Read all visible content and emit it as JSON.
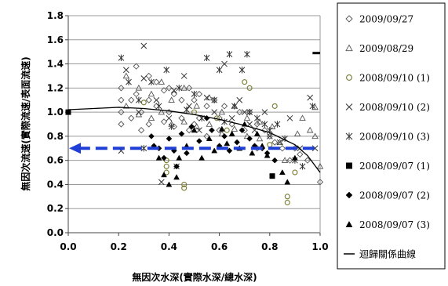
{
  "chart_data": {
    "type": "scatter",
    "xlabel": "無因次水深(實際水深/總水深)",
    "ylabel": "無因次流速(實際流速/表面流速)",
    "xlim": [
      0.0,
      1.0
    ],
    "ylim": [
      0.0,
      1.8
    ],
    "xticks": [
      "0.0",
      "0.2",
      "0.4",
      "0.6",
      "0.8",
      "1.0"
    ],
    "yticks": [
      "0.0",
      "0.2",
      "0.4",
      "0.6",
      "0.8",
      "1.0",
      "1.2",
      "1.4",
      "1.6",
      "1.8"
    ],
    "grid": "horizontal",
    "legend_position": "right",
    "series": [
      {
        "name": "2009/09/27",
        "marker": "diamond-open",
        "color": "#555555",
        "points": [
          [
            0.21,
            1.2
          ],
          [
            0.21,
            1.1
          ],
          [
            0.21,
            1.0
          ],
          [
            0.21,
            0.9
          ],
          [
            0.25,
            1.1
          ],
          [
            0.25,
            0.95
          ],
          [
            0.27,
            1.38
          ],
          [
            0.27,
            1.15
          ],
          [
            0.29,
            1.0
          ],
          [
            0.29,
            0.85
          ],
          [
            0.32,
            1.3
          ],
          [
            0.32,
            1.1
          ],
          [
            0.32,
            0.9
          ],
          [
            0.35,
            1.25
          ],
          [
            0.35,
            1.05
          ],
          [
            0.38,
            1.18
          ],
          [
            0.38,
            0.92
          ],
          [
            0.4,
            1.2
          ],
          [
            0.4,
            1.0
          ],
          [
            0.42,
            1.15
          ],
          [
            0.42,
            0.88
          ],
          [
            0.45,
            1.1
          ],
          [
            0.45,
            0.95
          ],
          [
            0.48,
            1.2
          ],
          [
            0.48,
            0.85
          ],
          [
            0.5,
            1.1
          ],
          [
            0.5,
            0.9
          ],
          [
            0.52,
            1.15
          ],
          [
            0.52,
            0.95
          ],
          [
            0.55,
            1.05
          ],
          [
            0.55,
            0.8
          ],
          [
            0.58,
            1.1
          ],
          [
            0.6,
            0.95
          ],
          [
            0.6,
            0.85
          ],
          [
            0.62,
            1.05
          ],
          [
            0.65,
            0.9
          ],
          [
            0.68,
            1.0
          ],
          [
            0.7,
            0.85
          ],
          [
            0.72,
            1.0
          ],
          [
            0.75,
            0.9
          ],
          [
            0.75,
            0.7
          ],
          [
            0.78,
            0.85
          ],
          [
            0.8,
            0.8
          ],
          [
            0.82,
            0.75
          ],
          [
            0.85,
            0.7
          ],
          [
            0.88,
            0.6
          ],
          [
            0.9,
            0.7
          ],
          [
            0.92,
            0.65
          ],
          [
            0.95,
            0.6
          ],
          [
            1.0,
            0.42
          ]
        ]
      },
      {
        "name": "2009/08/29",
        "marker": "triangle-open",
        "color": "#555555",
        "points": [
          [
            0.23,
            1.3
          ],
          [
            0.23,
            1.05
          ],
          [
            0.28,
            1.2
          ],
          [
            0.28,
            0.98
          ],
          [
            0.33,
            1.15
          ],
          [
            0.33,
            0.95
          ],
          [
            0.37,
            1.25
          ],
          [
            0.37,
            1.0
          ],
          [
            0.41,
            1.1
          ],
          [
            0.41,
            0.9
          ],
          [
            0.46,
            1.2
          ],
          [
            0.46,
            0.92
          ],
          [
            0.51,
            1.05
          ],
          [
            0.51,
            0.88
          ],
          [
            0.56,
            1.12
          ],
          [
            0.56,
            0.9
          ],
          [
            0.61,
            1.0
          ],
          [
            0.61,
            0.82
          ],
          [
            0.66,
            1.05
          ],
          [
            0.66,
            0.86
          ],
          [
            0.71,
            0.95
          ],
          [
            0.71,
            0.8
          ],
          [
            0.76,
            0.92
          ],
          [
            0.76,
            0.78
          ],
          [
            0.81,
            0.88
          ],
          [
            0.84,
            0.75
          ],
          [
            0.86,
            0.6
          ],
          [
            0.91,
            0.82
          ],
          [
            0.93,
            0.95
          ],
          [
            0.96,
            0.85
          ],
          [
            0.98,
            0.8
          ],
          [
            0.98,
            1.04
          ],
          [
            1.0,
            0.55
          ]
        ]
      },
      {
        "name": "2008/09/10 (1)",
        "marker": "circle-open",
        "color": "#7a7a30",
        "points": [
          [
            0.3,
            1.08
          ],
          [
            0.39,
            0.6
          ],
          [
            0.39,
            0.55
          ],
          [
            0.39,
            0.5
          ],
          [
            0.46,
            0.4
          ],
          [
            0.46,
            0.37
          ],
          [
            0.5,
            1.0
          ],
          [
            0.59,
            0.95
          ],
          [
            0.63,
            0.85
          ],
          [
            0.7,
            1.25
          ],
          [
            0.72,
            1.2
          ],
          [
            0.8,
            0.73
          ],
          [
            0.82,
            1.05
          ],
          [
            0.87,
            0.3
          ],
          [
            0.87,
            0.25
          ],
          [
            0.9,
            0.5
          ]
        ]
      },
      {
        "name": "2008/09/10 (2)",
        "marker": "x",
        "color": "#333333",
        "points": [
          [
            0.21,
            0.68
          ],
          [
            0.23,
            1.35
          ],
          [
            0.28,
            1.0
          ],
          [
            0.3,
            1.55
          ],
          [
            0.3,
            1.28
          ],
          [
            0.35,
            1.1
          ],
          [
            0.37,
            0.42
          ],
          [
            0.4,
            0.95
          ],
          [
            0.42,
            1.18
          ],
          [
            0.43,
            0.55
          ],
          [
            0.46,
            1.3
          ],
          [
            0.48,
            1.05
          ],
          [
            0.52,
            0.85
          ],
          [
            0.55,
            1.12
          ],
          [
            0.58,
            1.0
          ],
          [
            0.62,
            1.4
          ],
          [
            0.65,
            0.95
          ],
          [
            0.68,
            1.1
          ],
          [
            0.7,
            1.0
          ],
          [
            0.72,
            0.9
          ],
          [
            0.74,
            0.85
          ],
          [
            0.78,
            1.0
          ],
          [
            0.8,
            0.8
          ],
          [
            0.84,
            0.75
          ],
          [
            0.88,
            0.95
          ],
          [
            0.92,
            0.7
          ],
          [
            0.96,
            1.12
          ],
          [
            0.98,
            0.7
          ]
        ]
      },
      {
        "name": "2008/09/10 (3)",
        "marker": "star",
        "color": "#333333",
        "points": [
          [
            0.21,
            1.45
          ],
          [
            0.24,
            1.25
          ],
          [
            0.28,
            1.1
          ],
          [
            0.3,
            0.7
          ],
          [
            0.33,
            1.25
          ],
          [
            0.36,
            1.05
          ],
          [
            0.39,
            1.35
          ],
          [
            0.41,
            0.88
          ],
          [
            0.44,
            1.2
          ],
          [
            0.47,
            1.02
          ],
          [
            0.5,
            1.15
          ],
          [
            0.53,
            0.95
          ],
          [
            0.55,
            1.45
          ],
          [
            0.58,
            1.1
          ],
          [
            0.6,
            1.35
          ],
          [
            0.62,
            0.92
          ],
          [
            0.64,
            1.48
          ],
          [
            0.66,
            1.05
          ],
          [
            0.69,
            1.35
          ],
          [
            0.71,
            1.48
          ],
          [
            0.72,
            1.0
          ],
          [
            0.75,
            0.95
          ],
          [
            0.78,
            0.9
          ],
          [
            0.8,
            0.85
          ],
          [
            0.83,
            0.9
          ],
          [
            0.86,
            0.78
          ],
          [
            0.9,
            0.6
          ],
          [
            0.93,
            0.55
          ],
          [
            0.97,
            1.05
          ]
        ]
      },
      {
        "name": "2008/09/07 (1)",
        "marker": "square",
        "color": "#000000",
        "points": [
          [
            0.0,
            1.0
          ],
          [
            0.81,
            0.47
          ]
        ]
      },
      {
        "name": "2008/09/07 (2)",
        "marker": "diamond",
        "color": "#000000",
        "points": [
          [
            0.33,
            0.8
          ],
          [
            0.34,
            0.72
          ],
          [
            0.36,
            0.7
          ],
          [
            0.38,
            0.62
          ],
          [
            0.4,
            0.78
          ],
          [
            0.42,
            0.68
          ],
          [
            0.43,
            0.55
          ],
          [
            0.45,
            0.82
          ],
          [
            0.47,
            0.66
          ],
          [
            0.49,
            0.88
          ],
          [
            0.52,
            0.76
          ],
          [
            0.55,
            0.95
          ],
          [
            0.57,
            0.85
          ],
          [
            0.6,
            0.72
          ],
          [
            0.62,
            0.8
          ],
          [
            0.64,
            0.68
          ],
          [
            0.67,
            0.75
          ],
          [
            0.69,
            0.85
          ],
          [
            0.72,
            0.78
          ],
          [
            0.74,
            0.72
          ],
          [
            0.77,
            0.7
          ],
          [
            0.79,
            0.66
          ],
          [
            0.82,
            0.6
          ]
        ]
      },
      {
        "name": "2008/09/07 (3)",
        "marker": "triangle",
        "color": "#000000",
        "points": [
          [
            0.36,
            0.62
          ],
          [
            0.38,
            0.48
          ],
          [
            0.4,
            0.4
          ],
          [
            0.43,
            0.46
          ],
          [
            0.44,
            0.62
          ],
          [
            0.47,
            0.72
          ],
          [
            0.5,
            0.85
          ],
          [
            0.53,
            0.62
          ],
          [
            0.56,
            0.78
          ],
          [
            0.58,
            0.68
          ],
          [
            0.61,
            0.86
          ],
          [
            0.63,
            0.74
          ],
          [
            0.65,
            0.82
          ],
          [
            0.68,
            0.7
          ],
          [
            0.7,
            0.9
          ],
          [
            0.73,
            0.66
          ],
          [
            0.75,
            0.82
          ],
          [
            0.77,
            0.72
          ],
          [
            0.79,
            0.64
          ],
          [
            0.85,
            0.5
          ],
          [
            0.87,
            0.42
          ],
          [
            0.9,
            0.62
          ]
        ]
      }
    ],
    "regression": {
      "name": "迴歸關係曲線",
      "points": [
        [
          0.0,
          1.02
        ],
        [
          0.1,
          1.03
        ],
        [
          0.2,
          1.04
        ],
        [
          0.3,
          1.03
        ],
        [
          0.4,
          1.01
        ],
        [
          0.5,
          0.98
        ],
        [
          0.6,
          0.94
        ],
        [
          0.7,
          0.89
        ],
        [
          0.8,
          0.83
        ],
        [
          0.9,
          0.73
        ],
        [
          0.95,
          0.64
        ],
        [
          1.0,
          0.5
        ]
      ]
    },
    "reference_line": {
      "y": 0.7,
      "color": "#1f3fd6",
      "style": "dashed-arrow-left"
    },
    "short_marker": {
      "x": [
        0.97,
        1.0
      ],
      "y": 1.49
    }
  }
}
